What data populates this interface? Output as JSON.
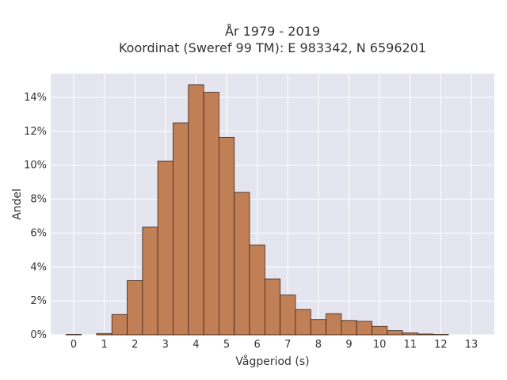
{
  "chart_data": {
    "type": "bar",
    "title_line1": "År 1979 - 2019",
    "title_line2": "Koordinat (Sweref 99 TM): E 983342, N 6596201",
    "xlabel": "Vågperiod (s)",
    "ylabel": "Andel",
    "x_ticks": [
      0,
      1,
      2,
      3,
      4,
      5,
      6,
      7,
      8,
      9,
      10,
      11,
      12,
      13
    ],
    "y_ticks": [
      0,
      2,
      4,
      6,
      8,
      10,
      12,
      14
    ],
    "y_tick_labels": [
      "0%",
      "2%",
      "4%",
      "6%",
      "8%",
      "10%",
      "12%",
      "14%"
    ],
    "xlim": [
      -0.75,
      13.75
    ],
    "ylim": [
      0,
      15.4
    ],
    "bin_width": 0.5,
    "bins": [
      {
        "x": 0.0,
        "value": 0.02
      },
      {
        "x": 0.5,
        "value": 0.0
      },
      {
        "x": 1.0,
        "value": 0.08
      },
      {
        "x": 1.5,
        "value": 1.2
      },
      {
        "x": 2.0,
        "value": 3.2
      },
      {
        "x": 2.5,
        "value": 6.35
      },
      {
        "x": 3.0,
        "value": 10.25
      },
      {
        "x": 3.5,
        "value": 12.5
      },
      {
        "x": 4.0,
        "value": 14.75
      },
      {
        "x": 4.5,
        "value": 14.3
      },
      {
        "x": 5.0,
        "value": 11.65
      },
      {
        "x": 5.5,
        "value": 8.4
      },
      {
        "x": 6.0,
        "value": 5.3
      },
      {
        "x": 6.5,
        "value": 3.3
      },
      {
        "x": 7.0,
        "value": 2.35
      },
      {
        "x": 7.5,
        "value": 1.5
      },
      {
        "x": 8.0,
        "value": 0.9
      },
      {
        "x": 8.5,
        "value": 1.25
      },
      {
        "x": 9.0,
        "value": 0.85
      },
      {
        "x": 9.5,
        "value": 0.8
      },
      {
        "x": 10.0,
        "value": 0.5
      },
      {
        "x": 10.5,
        "value": 0.25
      },
      {
        "x": 11.0,
        "value": 0.12
      },
      {
        "x": 11.5,
        "value": 0.05
      },
      {
        "x": 12.0,
        "value": 0.02
      },
      {
        "x": 12.5,
        "value": 0.0
      },
      {
        "x": 13.0,
        "value": 0.0
      }
    ],
    "grid": true,
    "colors": {
      "plot_bg": "#e5e5ef",
      "grid": "#ffffff",
      "bar_fill": "#c17f56",
      "bar_stroke": "#3a2418",
      "text": "#333333"
    }
  }
}
